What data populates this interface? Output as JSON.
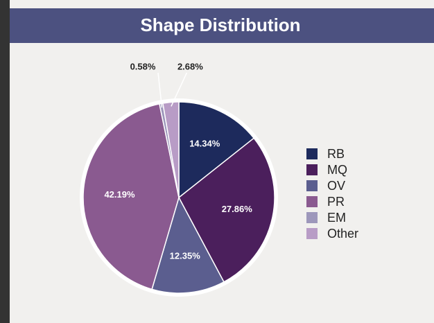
{
  "chart_data": {
    "type": "pie",
    "title": "Shape Distribution",
    "categories": [
      "RB",
      "MQ",
      "OV",
      "PR",
      "EM",
      "Other"
    ],
    "values": [
      14.34,
      27.86,
      12.35,
      42.19,
      0.58,
      2.68
    ],
    "value_labels": [
      "14.34%",
      "27.86%",
      "12.35%",
      "42.19%",
      "0.58%",
      "2.68%"
    ],
    "colors": [
      "#1d2a5c",
      "#4b1f5c",
      "#5b5e8f",
      "#8a5a90",
      "#9d97bb",
      "#b89cc6"
    ],
    "legend": "right"
  }
}
